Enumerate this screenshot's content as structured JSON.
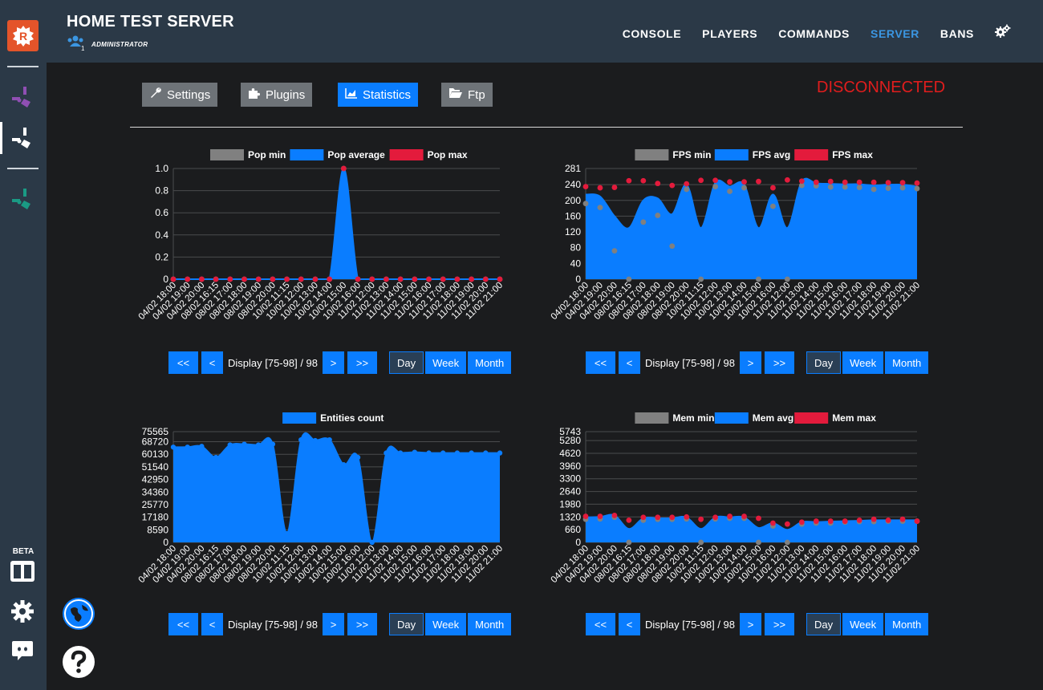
{
  "topbar": {
    "title": "HOME TEST SERVER",
    "role": "ADMINISTRATOR",
    "role_count": "1",
    "nav": [
      "CONSOLE",
      "PLAYERS",
      "COMMANDS",
      "SERVER",
      "BANS"
    ],
    "active_nav": "SERVER"
  },
  "sidebar": {
    "beta_label": "BETA",
    "icons": [
      "logo-r-icon",
      "game-purple-icon",
      "game-white-icon",
      "game-teal-icon",
      "columns-icon",
      "gear-icon",
      "discord-icon",
      "globe-icon",
      "help-icon"
    ]
  },
  "tabs": {
    "settings": "Settings",
    "plugins": "Plugins",
    "statistics": "Statistics",
    "ftp": "Ftp",
    "active": "Statistics"
  },
  "status": "DISCONNECTED",
  "pager": {
    "display_label": "Display [75-98]",
    "total": "/ 98",
    "first": "<<",
    "prev": "<",
    "next": ">",
    "last": ">>",
    "day": "Day",
    "week": "Week",
    "month": "Month",
    "active_period": "Day"
  },
  "colors": {
    "min": "#808080",
    "avg": "#0a7dff",
    "max": "#e31b3c",
    "accent": "#3b96e2",
    "disconnected": "#e01d1d"
  },
  "chart_data": [
    {
      "type": "area",
      "id": "pop",
      "legend": [
        "Pop min",
        "Pop average",
        "Pop max"
      ],
      "x": [
        "04/02 18:00",
        "04/02 19:00",
        "04/02 20:00",
        "08/02 16:15",
        "08/02 17:00",
        "08/02 18:00",
        "08/02 19:00",
        "08/02 20:00",
        "10/02 11:15",
        "10/02 12:00",
        "10/02 13:00",
        "10/02 14:00",
        "10/02 15:00",
        "10/02 16:00",
        "11/02 12:00",
        "11/02 13:00",
        "11/02 14:00",
        "11/02 15:00",
        "11/02 16:00",
        "11/02 17:00",
        "11/02 18:00",
        "11/02 19:00",
        "11/02 20:00",
        "11/02 21:00"
      ],
      "yticks": [
        "0",
        "0.2",
        "0.4",
        "0.6",
        "0.8",
        "1.0"
      ],
      "ylim": [
        0,
        1
      ],
      "series": [
        {
          "name": "Pop min",
          "values": [
            0,
            0,
            0,
            0,
            0,
            0,
            0,
            0,
            0,
            0,
            0,
            0,
            1,
            0,
            0,
            0,
            0,
            0,
            0,
            0,
            0,
            0,
            0,
            0
          ]
        },
        {
          "name": "Pop average",
          "values": [
            0,
            0,
            0,
            0,
            0,
            0,
            0,
            0,
            0,
            0,
            0,
            0,
            1,
            0,
            0,
            0,
            0,
            0,
            0,
            0,
            0,
            0,
            0,
            0
          ]
        },
        {
          "name": "Pop max",
          "values": [
            0,
            0,
            0,
            0,
            0,
            0,
            0,
            0,
            0,
            0,
            0,
            0,
            1,
            0,
            0,
            0,
            0,
            0,
            0,
            0,
            0,
            0,
            0,
            0
          ]
        }
      ]
    },
    {
      "type": "area",
      "id": "fps",
      "legend": [
        "FPS min",
        "FPS avg",
        "FPS max"
      ],
      "x": [
        "04/02 18:00",
        "04/02 19:00",
        "04/02 20:00",
        "08/02 16:15",
        "08/02 17:00",
        "08/02 18:00",
        "08/02 19:00",
        "08/02 20:00",
        "10/02 11:15",
        "10/02 12:00",
        "10/02 13:00",
        "10/02 14:00",
        "10/02 15:00",
        "10/02 16:00",
        "11/02 12:00",
        "11/02 13:00",
        "11/02 14:00",
        "11/02 15:00",
        "11/02 16:00",
        "11/02 17:00",
        "11/02 18:00",
        "11/02 19:00",
        "11/02 20:00",
        "11/02 21:00"
      ],
      "yticks": [
        "0",
        "40",
        "80",
        "120",
        "160",
        "200",
        "240",
        "281"
      ],
      "ylim": [
        0,
        281
      ],
      "series": [
        {
          "name": "FPS min",
          "values": [
            192,
            182,
            72,
            0,
            145,
            162,
            84,
            228,
            0,
            235,
            223,
            232,
            0,
            185,
            0,
            238,
            237,
            234,
            234,
            233,
            228,
            231,
            232,
            230
          ]
        },
        {
          "name": "FPS avg",
          "values": [
            215,
            210,
            160,
            130,
            200,
            205,
            165,
            240,
            130,
            245,
            235,
            240,
            130,
            215,
            130,
            248,
            243,
            242,
            241,
            241,
            238,
            240,
            240,
            235
          ]
        },
        {
          "name": "FPS max",
          "values": [
            235,
            232,
            233,
            250,
            250,
            243,
            238,
            242,
            251,
            251,
            247,
            247,
            248,
            232,
            252,
            249,
            246,
            248,
            246,
            246,
            246,
            245,
            245,
            244
          ]
        }
      ]
    },
    {
      "type": "area",
      "id": "entities",
      "legend": [
        "Entities count"
      ],
      "x": [
        "04/02 18:00",
        "04/02 19:00",
        "04/02 20:00",
        "08/02 16:15",
        "08/02 17:00",
        "08/02 18:00",
        "08/02 19:00",
        "08/02 20:00",
        "10/02 11:15",
        "10/02 12:00",
        "10/02 13:00",
        "10/02 14:00",
        "10/02 15:00",
        "10/02 16:00",
        "11/02 12:00",
        "11/02 13:00",
        "11/02 14:00",
        "11/02 15:00",
        "11/02 16:00",
        "11/02 17:00",
        "11/02 18:00",
        "11/02 19:00",
        "11/02 20:00",
        "11/02 21:00"
      ],
      "yticks": [
        "0",
        "8590",
        "17180",
        "25770",
        "34360",
        "42950",
        "51540",
        "60130",
        "68720",
        "75565"
      ],
      "ylim": [
        0,
        75565
      ],
      "series": [
        {
          "name": "Entities count",
          "values": [
            65000,
            65000,
            65500,
            58000,
            66500,
            67000,
            66500,
            67000,
            6000,
            70000,
            69500,
            70000,
            53000,
            58000,
            0,
            61000,
            61000,
            61500,
            61000,
            61000,
            61000,
            61000,
            61000,
            61000
          ]
        }
      ]
    },
    {
      "type": "area",
      "id": "mem",
      "legend": [
        "Mem min",
        "Mem avg",
        "Mem max"
      ],
      "x": [
        "04/02 18:00",
        "04/02 19:00",
        "04/02 20:00",
        "08/02 16:15",
        "08/02 17:00",
        "08/02 18:00",
        "08/02 19:00",
        "08/02 20:00",
        "10/02 11:15",
        "10/02 12:00",
        "10/02 13:00",
        "10/02 14:00",
        "10/02 15:00",
        "10/02 16:00",
        "11/02 12:00",
        "11/02 13:00",
        "11/02 14:00",
        "11/02 15:00",
        "11/02 16:00",
        "11/02 17:00",
        "11/02 18:00",
        "11/02 19:00",
        "11/02 20:00",
        "11/02 21:00"
      ],
      "yticks": [
        "0",
        "660",
        "1320",
        "1980",
        "2640",
        "3300",
        "3960",
        "4620",
        "5280",
        "5743"
      ],
      "ylim": [
        0,
        5743
      ],
      "series": [
        {
          "name": "Mem min",
          "values": [
            1200,
            1220,
            1300,
            0,
            1150,
            1200,
            1200,
            1220,
            0,
            1220,
            1250,
            1250,
            0,
            850,
            0,
            950,
            1000,
            1000,
            1050,
            1080,
            1080,
            1100,
            1100,
            1100
          ]
        },
        {
          "name": "Mem avg",
          "values": [
            1300,
            1320,
            1400,
            700,
            1250,
            1250,
            1250,
            1300,
            700,
            1300,
            1300,
            1300,
            750,
            1000,
            650,
            1050,
            1050,
            1080,
            1100,
            1120,
            1150,
            1150,
            1150,
            1150
          ]
        },
        {
          "name": "Mem max",
          "values": [
            1350,
            1350,
            1400,
            1150,
            1300,
            1300,
            1300,
            1320,
            1200,
            1300,
            1350,
            1350,
            1250,
            1000,
            950,
            1050,
            1100,
            1100,
            1100,
            1150,
            1200,
            1150,
            1200,
            1100
          ]
        }
      ]
    }
  ]
}
